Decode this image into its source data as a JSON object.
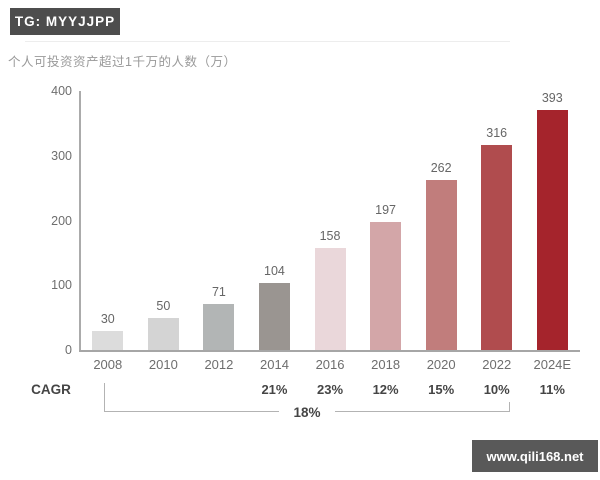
{
  "badge": {
    "label": "TG: MYYJJPP"
  },
  "watermark": {
    "label": "www.qili168.net"
  },
  "chart_data": {
    "type": "bar",
    "title": "个人可投资资产超过1千万的人数（万）",
    "categories": [
      "2008",
      "2010",
      "2012",
      "2014",
      "2016",
      "2018",
      "2020",
      "2022",
      "2024E"
    ],
    "values": [
      30,
      50,
      71,
      104,
      158,
      197,
      262,
      316,
      393
    ],
    "bar_colors": [
      "#dcdcdc",
      "#d4d4d4",
      "#b2b5b5",
      "#9a9591",
      "#ead7da",
      "#d3a6a8",
      "#c17d7c",
      "#b04c4e",
      "#a5242c"
    ],
    "xlabel": "",
    "ylabel": "",
    "ylim": [
      0,
      400
    ],
    "yticks": [
      0,
      100,
      200,
      300,
      400
    ],
    "grid": false,
    "legend_position": "none",
    "axis_color": "#ababab",
    "label_color": "#6e6e6e",
    "cagr": {
      "label": "CAGR",
      "values": [
        "",
        "",
        "",
        "21%",
        "23%",
        "12%",
        "15%",
        "10%",
        "11%"
      ],
      "overall": "18%",
      "overall_span": [
        "2008",
        "2022"
      ]
    }
  }
}
